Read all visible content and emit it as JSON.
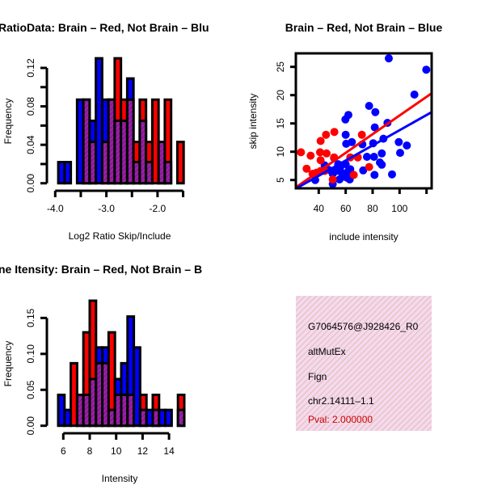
{
  "chart_data": [
    {
      "type": "bar",
      "title": "RatioData: Brain – Red, Not Brain – Blu",
      "xlabel": "Log2 Ratio Skip/Include",
      "ylabel": "Frequency",
      "xlim": [
        -4.0,
        -1.5
      ],
      "ylim": [
        0,
        0.13
      ],
      "bin_start": -3.94,
      "bin_width": 0.1225,
      "xticks": [
        -4.0,
        -3.5,
        -3.0,
        -2.5,
        -2.0,
        -1.5
      ],
      "xtick_labels": [
        "-4.0",
        "",
        "-3.0",
        "",
        "-2.0",
        ""
      ],
      "yticks": [
        0,
        0.02,
        0.04,
        0.06,
        0.08,
        0.1,
        0.12
      ],
      "ytick_labels": [
        "0.00",
        "",
        "0.04",
        "",
        "0.08",
        "",
        "0.12"
      ],
      "series": [
        {
          "name": "Not Brain",
          "color": "#0000ff",
          "values": [
            0.022,
            0.022,
            0,
            0.087,
            0.087,
            0.065,
            0.13,
            0.087,
            0.087,
            0.065,
            0.065,
            0.109,
            0.022,
            0.065,
            0.022,
            0,
            0.043,
            0.022,
            0,
            0
          ]
        },
        {
          "name": "Brain",
          "color": "#ff0000",
          "values": [
            0,
            0,
            0,
            0,
            0.087,
            0.043,
            0,
            0.043,
            0.087,
            0.13,
            0.087,
            0.087,
            0.043,
            0.087,
            0.043,
            0.087,
            0.043,
            0.087,
            0,
            0.043
          ]
        }
      ],
      "overlap_color": "#a020a0"
    },
    {
      "type": "scatter",
      "title": "Brain – Red, Not Brain – Blue",
      "xlabel": "include intensity",
      "ylabel": "skip intensity",
      "xlim": [
        23,
        124
      ],
      "ylim": [
        3.5,
        27.3
      ],
      "xticks": [
        40,
        60,
        80,
        100,
        120
      ],
      "xtick_labels": [
        "40",
        "60",
        "80",
        "100",
        ""
      ],
      "yticks": [
        5,
        10,
        15,
        20,
        25
      ],
      "ytick_labels": [
        "5",
        "10",
        "15",
        "20",
        "25"
      ],
      "series": [
        {
          "name": "Brain",
          "color": "#ff0000",
          "fit": {
            "slope": 0.165,
            "intercept": -0.1
          },
          "points": [
            [
              26.8,
              9.9
            ],
            [
              34,
              9.3
            ],
            [
              31,
              7
            ],
            [
              35.4,
              6.1
            ],
            [
              38.4,
              6.3
            ],
            [
              41.4,
              6.6
            ],
            [
              41,
              9.9
            ],
            [
              41.4,
              8.5
            ],
            [
              41.4,
              11.9
            ],
            [
              45.4,
              13
            ],
            [
              51.6,
              13.5
            ],
            [
              45.8,
              9.7
            ],
            [
              51.4,
              9
            ],
            [
              50.4,
              5.1
            ],
            [
              63.4,
              9
            ],
            [
              66,
              5.9
            ],
            [
              69,
              9
            ],
            [
              72,
              13
            ],
            [
              77.4,
              7.3
            ],
            [
              44.4,
              6.6
            ],
            [
              37.4,
              5.9
            ]
          ]
        },
        {
          "name": "Not Brain",
          "color": "#0000ff",
          "fit": {
            "slope": 0.134,
            "intercept": 0.4
          },
          "points": [
            [
              92,
              26.5
            ],
            [
              119.8,
              24.5
            ],
            [
              111,
              20.1
            ],
            [
              77.4,
              18.1
            ],
            [
              82,
              17
            ],
            [
              62,
              16.5
            ],
            [
              59.8,
              15.7
            ],
            [
              91,
              15.1
            ],
            [
              60,
              13
            ],
            [
              81.6,
              14.3
            ],
            [
              88,
              12.3
            ],
            [
              60.4,
              11.4
            ],
            [
              64.6,
              11.7
            ],
            [
              72.4,
              11.3
            ],
            [
              80.4,
              11.5
            ],
            [
              99.4,
              11.7
            ],
            [
              105.4,
              11.1
            ],
            [
              100.4,
              9.8
            ],
            [
              86.8,
              9.7
            ],
            [
              75.8,
              9.1
            ],
            [
              81,
              9.1
            ],
            [
              85.4,
              8.1
            ],
            [
              86.8,
              7.7
            ],
            [
              73,
              6.7
            ],
            [
              81.4,
              5.9
            ],
            [
              94.4,
              6
            ],
            [
              51.4,
              8.9
            ],
            [
              44.4,
              7.6
            ],
            [
              37.4,
              5
            ],
            [
              50.4,
              4.3
            ],
            [
              47.4,
              6.8
            ],
            [
              50.4,
              6.1
            ],
            [
              54.4,
              7.8
            ],
            [
              56,
              7.3
            ],
            [
              57,
              6.3
            ],
            [
              59,
              5.6
            ],
            [
              61,
              5.4
            ],
            [
              62,
              6.6
            ],
            [
              63.4,
              6.9
            ],
            [
              60,
              7.8
            ],
            [
              53,
              6.6
            ],
            [
              63,
              5.1
            ],
            [
              55.4,
              5.1
            ]
          ]
        }
      ]
    },
    {
      "type": "bar",
      "title": "ne Itensity: Brain – Red, Not Brain – B",
      "xlabel": "Intensity",
      "ylabel": "Frequency",
      "xlim": [
        5.6,
        15.2
      ],
      "ylim": [
        0,
        0.18
      ],
      "bin_start": 5.615,
      "bin_width": 0.477,
      "xticks": [
        6,
        8,
        10,
        12,
        14
      ],
      "xtick_labels": [
        "6",
        "8",
        "10",
        "12",
        "14"
      ],
      "yticks": [
        0,
        0.05,
        0.1,
        0.15
      ],
      "ytick_labels": [
        "0.00",
        "0.05",
        "0.10",
        "0.15"
      ],
      "series": [
        {
          "name": "Not Brain",
          "color": "#0000ff",
          "values": [
            0.043,
            0.022,
            0,
            0.043,
            0.043,
            0.065,
            0.109,
            0.109,
            0.022,
            0.065,
            0.087,
            0.152,
            0.109,
            0.022,
            0.022,
            0.022,
            0.022,
            0.022,
            0,
            0.022
          ]
        },
        {
          "name": "Brain",
          "color": "#ff0000",
          "values": [
            0,
            0,
            0.087,
            0.043,
            0.13,
            0.174,
            0.087,
            0.087,
            0.13,
            0.043,
            0.043,
            0.043,
            0,
            0.043,
            0,
            0.043,
            0,
            0,
            0,
            0.043
          ]
        }
      ],
      "overlap_color": "#a020a0"
    }
  ],
  "info": {
    "id": "G7064576@J928426_R0",
    "type": "altMutEx",
    "gene": "Fign",
    "locus": "chr2.14111–1.1",
    "pval": "Pval: 2.000000",
    "pval_color": "#cc0000"
  }
}
